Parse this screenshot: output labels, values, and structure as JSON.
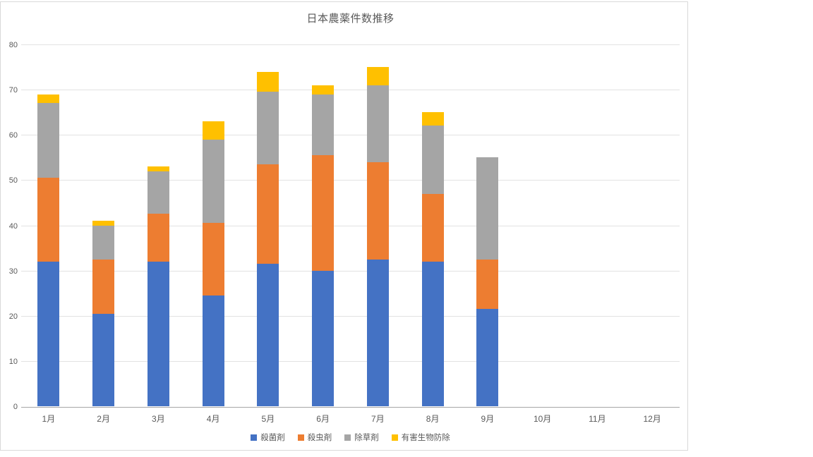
{
  "chart_data": {
    "type": "bar",
    "stacked": true,
    "title": "日本農薬件数推移",
    "categories": [
      "1月",
      "2月",
      "3月",
      "4月",
      "5月",
      "6月",
      "7月",
      "8月",
      "9月",
      "10月",
      "11月",
      "12月"
    ],
    "series": [
      {
        "name": "殺菌剤",
        "color": "#4472C4",
        "values": [
          32,
          20.5,
          32,
          24.5,
          31.5,
          30,
          32.5,
          32,
          21.5,
          0,
          0,
          0
        ]
      },
      {
        "name": "殺虫剤",
        "color": "#ED7D31",
        "values": [
          18.5,
          12,
          10.5,
          16,
          22,
          25.5,
          21.5,
          15,
          11,
          0,
          0,
          0
        ]
      },
      {
        "name": "除草剤",
        "color": "#A5A5A5",
        "values": [
          16.5,
          7.5,
          9.5,
          18.5,
          16,
          13.5,
          17,
          15,
          22.5,
          0,
          0,
          0
        ]
      },
      {
        "name": "有害生物防除",
        "color": "#FFC000",
        "values": [
          2,
          1,
          1,
          4,
          4.5,
          2,
          4,
          3,
          0,
          0,
          0,
          0
        ]
      }
    ],
    "stack_totals": [
      69,
      41,
      53,
      63,
      74,
      71,
      75,
      65,
      55,
      0,
      0,
      0
    ],
    "xlabel": "",
    "ylabel": "",
    "ylim": [
      0,
      80
    ],
    "yticks": [
      0,
      10,
      20,
      30,
      40,
      50,
      60,
      70,
      80
    ],
    "grid": true,
    "legend_position": "bottom",
    "colors": {
      "gridline": "#e2e2e2",
      "axis_line": "#a6a6a6",
      "text": "#595959",
      "chart_border": "#d9d9d9",
      "background": "#ffffff"
    }
  }
}
